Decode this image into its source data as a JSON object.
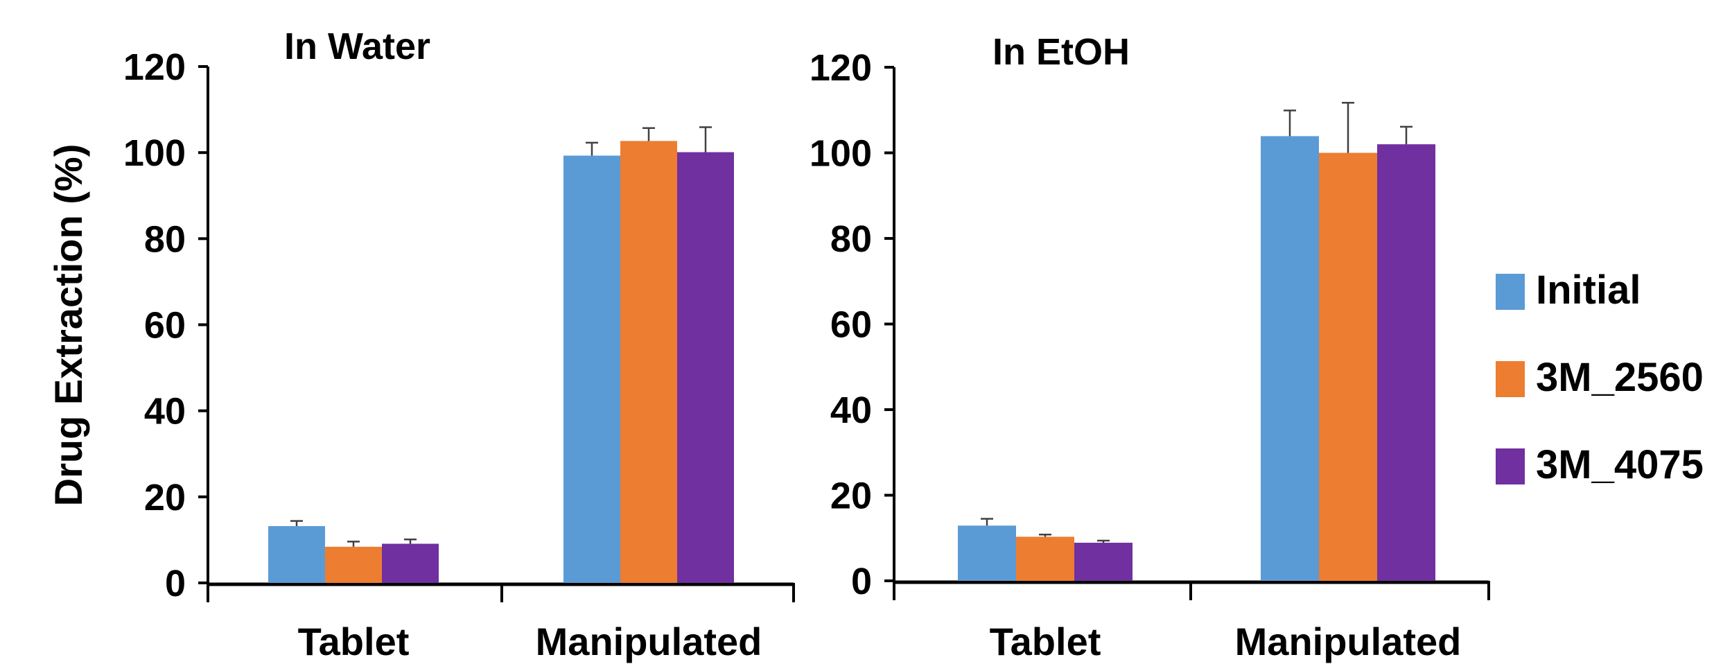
{
  "chart_data": [
    {
      "type": "bar",
      "title": "In Water",
      "ylabel": "Drug Extraction (%)",
      "xlabel": "",
      "categories": [
        "Tablet",
        "Manipulated"
      ],
      "ylim": [
        0,
        120
      ],
      "yticks": [
        0,
        20,
        40,
        60,
        80,
        100,
        120
      ],
      "grid": false,
      "series": [
        {
          "name": "Initial",
          "values": [
            13.2,
            99.3
          ],
          "errors": [
            1.2,
            3.0
          ]
        },
        {
          "name": "3M_2560",
          "values": [
            8.4,
            102.7
          ],
          "errors": [
            1.2,
            3.0
          ]
        },
        {
          "name": "3M_4075",
          "values": [
            9.1,
            100.1
          ],
          "errors": [
            1.0,
            5.8
          ]
        }
      ]
    },
    {
      "type": "bar",
      "title": "In EtOH",
      "ylabel": "",
      "xlabel": "",
      "categories": [
        "Tablet",
        "Manipulated"
      ],
      "ylim": [
        0,
        120
      ],
      "yticks": [
        0,
        20,
        40,
        60,
        80,
        100,
        120
      ],
      "grid": false,
      "series": [
        {
          "name": "Initial",
          "values": [
            12.9,
            103.9
          ],
          "errors": [
            1.6,
            6.0
          ]
        },
        {
          "name": "3M_2560",
          "values": [
            10.3,
            100.0
          ],
          "errors": [
            0.5,
            11.7
          ]
        },
        {
          "name": "3M_4075",
          "values": [
            8.9,
            102.0
          ],
          "errors": [
            0.5,
            4.1
          ]
        }
      ]
    }
  ],
  "legend": {
    "placement": "right",
    "entries": [
      {
        "name": "Initial",
        "color": "#5B9BD5"
      },
      {
        "name": "3M_2560",
        "color": "#ED7D31"
      },
      {
        "name": "3M_4075",
        "color": "#7030A0"
      }
    ]
  },
  "colors": {
    "Initial": "#5B9BD5",
    "3M_2560": "#ED7D31",
    "3M_4075": "#7030A0",
    "axis": "#000000",
    "error_bar": "#404040"
  }
}
